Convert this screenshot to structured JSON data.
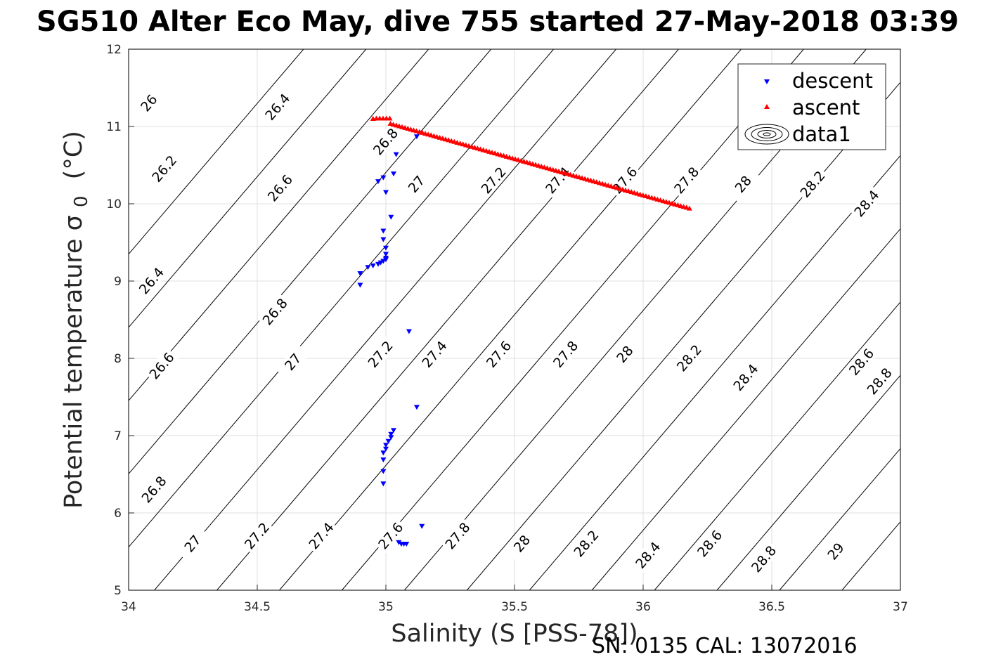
{
  "chart_data": {
    "type": "scatter",
    "title": "SG510 Alter Eco May, dive 755 started 27-May-2018 03:39",
    "xlabel": "Salinity (S [PSS-78])",
    "ylabel_text": "Potential temperature σ",
    "ylabel_sub": "0",
    "ylabel_unit": "(°C)",
    "xlim": [
      34,
      37
    ],
    "ylim": [
      5,
      12
    ],
    "xticks": [
      "34",
      "34.5",
      "35",
      "35.5",
      "36",
      "36.5",
      "37"
    ],
    "yticks": [
      "5",
      "6",
      "7",
      "8",
      "9",
      "10",
      "11",
      "12"
    ],
    "grid": true,
    "legend_position": "top-right",
    "footer": "SN: 0135  CAL: 13072016",
    "legend": [
      {
        "name": "descent",
        "marker": "down-triangle",
        "color": "#0000ff"
      },
      {
        "name": "ascent",
        "marker": "up-triangle",
        "color": "#ff0000"
      },
      {
        "name": "data1",
        "marker": "contour",
        "color": "#000000"
      }
    ],
    "series": [
      {
        "name": "descent",
        "marker": "down-triangle",
        "color": "#0000ff",
        "points": [
          [
            35.12,
            10.87
          ],
          [
            35.04,
            10.64
          ],
          [
            35.03,
            10.39
          ],
          [
            34.99,
            10.34
          ],
          [
            34.97,
            10.29
          ],
          [
            35.0,
            10.15
          ],
          [
            35.02,
            9.83
          ],
          [
            34.99,
            9.65
          ],
          [
            34.99,
            9.54
          ],
          [
            35.0,
            9.43
          ],
          [
            35.0,
            9.35
          ],
          [
            35.0,
            9.3
          ],
          [
            35.0,
            9.28
          ],
          [
            34.99,
            9.26
          ],
          [
            34.98,
            9.24
          ],
          [
            34.97,
            9.22
          ],
          [
            34.95,
            9.2
          ],
          [
            34.93,
            9.18
          ],
          [
            34.9,
            9.1
          ],
          [
            34.9,
            8.95
          ],
          [
            35.09,
            8.35
          ],
          [
            35.12,
            7.37
          ],
          [
            35.03,
            7.07
          ],
          [
            35.02,
            7.02
          ],
          [
            35.02,
            6.98
          ],
          [
            35.01,
            6.93
          ],
          [
            35.0,
            6.88
          ],
          [
            35.0,
            6.83
          ],
          [
            34.99,
            6.78
          ],
          [
            34.99,
            6.69
          ],
          [
            34.99,
            6.54
          ],
          [
            34.99,
            6.38
          ],
          [
            35.14,
            5.83
          ],
          [
            35.05,
            5.62
          ],
          [
            35.06,
            5.6
          ],
          [
            35.07,
            5.6
          ],
          [
            35.08,
            5.6
          ]
        ]
      },
      {
        "name": "ascent",
        "marker": "up-triangle",
        "color": "#ff0000",
        "start": [
          34.95,
          11.1
        ],
        "end": [
          36.18,
          9.94
        ],
        "points_count": 110
      }
    ],
    "contours": [
      {
        "level": "26",
        "labels": [
          [
            34.08,
            11.3
          ]
        ]
      },
      {
        "level": "26.2",
        "labels": [
          [
            34.14,
            10.45
          ]
        ]
      },
      {
        "level": "26.4",
        "labels": [
          [
            34.58,
            11.25
          ],
          [
            34.09,
            9.0
          ]
        ]
      },
      {
        "level": "26.6",
        "labels": [
          [
            34.59,
            10.2
          ],
          [
            34.13,
            7.9
          ]
        ]
      },
      {
        "level": "26.8",
        "labels": [
          [
            35.0,
            10.8
          ],
          [
            34.57,
            8.6
          ],
          [
            34.1,
            6.3
          ]
        ]
      },
      {
        "level": "27",
        "labels": [
          [
            35.12,
            10.25
          ],
          [
            34.64,
            7.95
          ],
          [
            34.25,
            5.6
          ]
        ]
      },
      {
        "level": "27.2",
        "labels": [
          [
            35.42,
            10.3
          ],
          [
            34.98,
            8.05
          ],
          [
            34.5,
            5.7
          ]
        ]
      },
      {
        "level": "27.4",
        "labels": [
          [
            35.67,
            10.3
          ],
          [
            35.19,
            8.05
          ],
          [
            34.75,
            5.7
          ]
        ]
      },
      {
        "level": "27.6",
        "labels": [
          [
            35.93,
            10.3
          ],
          [
            35.44,
            8.05
          ],
          [
            35.02,
            5.7
          ]
        ]
      },
      {
        "level": "27.8",
        "labels": [
          [
            36.17,
            10.3
          ],
          [
            35.7,
            8.05
          ],
          [
            35.28,
            5.7
          ]
        ]
      },
      {
        "level": "28",
        "labels": [
          [
            36.39,
            10.25
          ],
          [
            35.93,
            8.05
          ],
          [
            35.53,
            5.6
          ]
        ]
      },
      {
        "level": "28.2",
        "labels": [
          [
            36.66,
            10.25
          ],
          [
            36.18,
            8.0
          ],
          [
            35.78,
            5.6
          ]
        ]
      },
      {
        "level": "28.4",
        "labels": [
          [
            36.87,
            10.0
          ],
          [
            36.4,
            7.75
          ],
          [
            36.02,
            5.45
          ]
        ]
      },
      {
        "level": "28.6",
        "labels": [
          [
            36.85,
            7.95
          ],
          [
            36.26,
            5.6
          ]
        ]
      },
      {
        "level": "28.8",
        "labels": [
          [
            36.92,
            7.7
          ],
          [
            36.47,
            5.4
          ]
        ]
      },
      {
        "level": "29",
        "labels": [
          [
            36.75,
            5.5
          ]
        ]
      }
    ]
  }
}
